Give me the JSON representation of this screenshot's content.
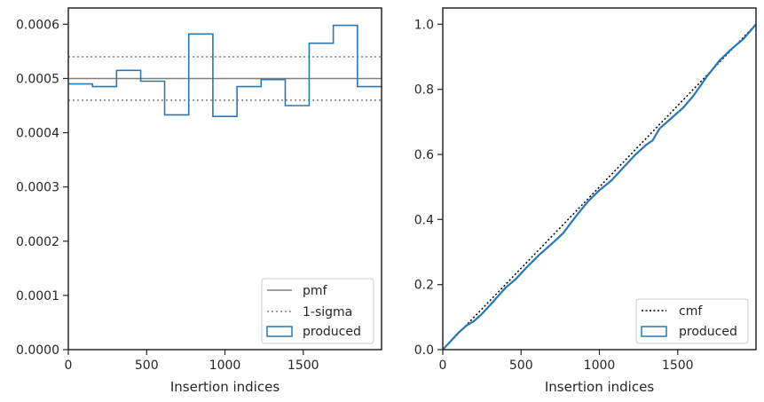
{
  "colors": {
    "produced": "#2878b5",
    "pmf": "#808080",
    "sigma": "#808080",
    "cmf": "#000000",
    "frame": "#262626",
    "legend_border": "#cccccc"
  },
  "chart_data": [
    {
      "type": "histogram",
      "xlabel": "Insertion indices",
      "ylabel": "",
      "xlim": [
        0,
        2000
      ],
      "ylim": [
        0,
        0.00063
      ],
      "xticks": [
        0,
        500,
        1000,
        1500
      ],
      "xtick_labels": [
        "0",
        "500",
        "1000",
        "1500"
      ],
      "yticks": [
        0,
        0.0001,
        0.0002,
        0.0003,
        0.0004,
        0.0005,
        0.0006
      ],
      "ytick_labels": [
        "0.0000",
        "0.0001",
        "0.0002",
        "0.0003",
        "0.0004",
        "0.0005",
        "0.0006"
      ],
      "grid": false,
      "legend_position": "lower-right",
      "legend": [
        "pmf",
        "1-sigma",
        "produced"
      ],
      "pmf": 0.0005,
      "sigma_band": [
        0.00046,
        0.00054
      ],
      "bin_edges": [
        0,
        154,
        308,
        462,
        615,
        769,
        923,
        1077,
        1231,
        1385,
        1538,
        1692,
        1846,
        2000
      ],
      "values": [
        0.00049,
        0.000485,
        0.000515,
        0.000495,
        0.000433,
        0.000582,
        0.00043,
        0.000485,
        0.000498,
        0.00045,
        0.000565,
        0.000598,
        0.000485
      ]
    },
    {
      "type": "line",
      "xlabel": "Insertion indices",
      "ylabel": "",
      "xlim": [
        0,
        2000
      ],
      "ylim": [
        0,
        1.05
      ],
      "xticks": [
        0,
        500,
        1000,
        1500
      ],
      "xtick_labels": [
        "0",
        "500",
        "1000",
        "1500"
      ],
      "yticks": [
        0,
        0.2,
        0.4,
        0.6,
        0.8,
        1.0
      ],
      "ytick_labels": [
        "0.0",
        "0.2",
        "0.4",
        "0.6",
        "0.8",
        "1.0"
      ],
      "grid": false,
      "legend_position": "lower-right",
      "legend": [
        "cmf",
        "produced"
      ],
      "series": [
        {
          "name": "cmf",
          "x": [
            0,
            2000
          ],
          "y": [
            0,
            1.0
          ]
        },
        {
          "name": "produced",
          "x": [
            0,
            100,
            154,
            200,
            250,
            308,
            400,
            462,
            550,
            615,
            700,
            769,
            850,
            923,
            1000,
            1077,
            1150,
            1231,
            1300,
            1340,
            1385,
            1450,
            1538,
            1600,
            1692,
            1770,
            1846,
            1920,
            2000
          ],
          "y": [
            0,
            0.052,
            0.075,
            0.088,
            0.11,
            0.14,
            0.19,
            0.215,
            0.26,
            0.291,
            0.327,
            0.358,
            0.41,
            0.453,
            0.49,
            0.52,
            0.558,
            0.6,
            0.63,
            0.643,
            0.68,
            0.707,
            0.745,
            0.78,
            0.843,
            0.89,
            0.925,
            0.955,
            1.0
          ]
        }
      ]
    }
  ]
}
